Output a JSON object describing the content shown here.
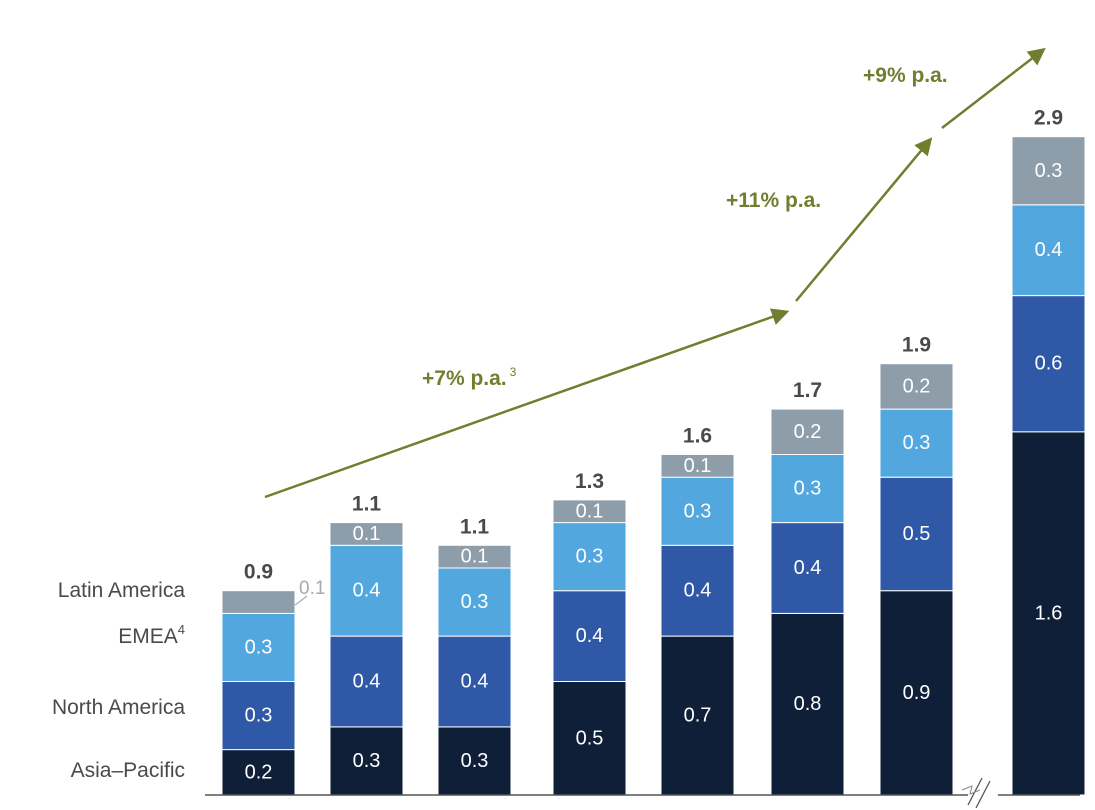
{
  "chart_data": {
    "type": "bar",
    "stacked": true,
    "categories": [
      "",
      "",
      "",
      "",
      "",
      "",
      "",
      ""
    ],
    "series": [
      {
        "name": "Asia–Pacific",
        "values": [
          0.2,
          0.3,
          0.3,
          0.5,
          0.7,
          0.8,
          0.9,
          1.6
        ],
        "color": "#0f1f38"
      },
      {
        "name": "North America",
        "values": [
          0.3,
          0.4,
          0.4,
          0.4,
          0.4,
          0.4,
          0.5,
          0.6
        ],
        "color": "#2f58a6"
      },
      {
        "name": "EMEA",
        "values": [
          0.3,
          0.4,
          0.3,
          0.3,
          0.3,
          0.3,
          0.3,
          0.4
        ],
        "color": "#52a7df"
      },
      {
        "name": "Latin America",
        "values": [
          0.1,
          0.1,
          0.1,
          0.1,
          0.1,
          0.2,
          0.2,
          0.3
        ],
        "color": "#8d9daa"
      }
    ],
    "totals": [
      "0.9",
      "1.1",
      "1.1",
      "1.3",
      "1.6",
      "1.7",
      "1.9",
      "2.9"
    ],
    "segment_labels": [
      [
        "0.2",
        "0.3",
        "0.3",
        ""
      ],
      [
        "0.3",
        "0.4",
        "0.4",
        "0.1"
      ],
      [
        "0.3",
        "0.4",
        "0.3",
        "0.1"
      ],
      [
        "0.5",
        "0.4",
        "0.3",
        "0.1"
      ],
      [
        "0.7",
        "0.4",
        "0.3",
        "0.1"
      ],
      [
        "0.8",
        "0.4",
        "0.3",
        "0.2"
      ],
      [
        "0.9",
        "0.5",
        "0.3",
        "0.2"
      ],
      [
        "1.6",
        "0.6",
        "0.4",
        "0.3"
      ]
    ],
    "outside_label": {
      "bar_index": 0,
      "series_index": 3,
      "text": "0.1"
    },
    "legend": {
      "placement": "left",
      "items": [
        {
          "text": "Latin America",
          "sup": ""
        },
        {
          "text": "EMEA",
          "sup": "4"
        },
        {
          "text": "North America",
          "sup": ""
        },
        {
          "text": "Asia–Pacific",
          "sup": ""
        }
      ]
    },
    "growth_annotations": [
      {
        "text": "+7% p.a.",
        "sup": "3",
        "from_bar": 0,
        "to_bar": 5
      },
      {
        "text": "+11% p.a.",
        "sup": "",
        "from_bar": 5,
        "to_bar": 6
      },
      {
        "text": "+9% p.a.",
        "sup": "",
        "from_bar": 6,
        "to_bar": 7
      }
    ],
    "axis_break_before_bar": 7,
    "ylim": [
      0,
      3.2
    ],
    "grid": false,
    "growth_color": "#6f7f2f"
  }
}
